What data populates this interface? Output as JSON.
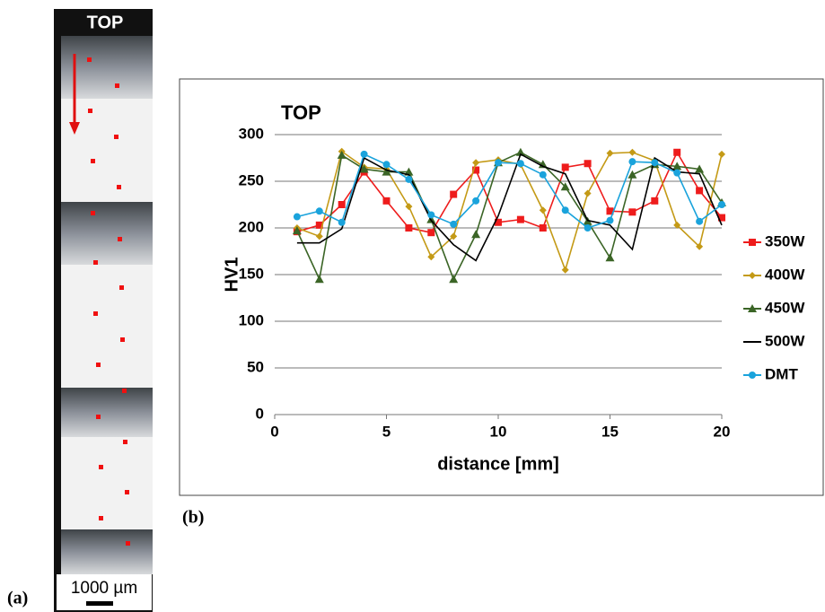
{
  "figure": {
    "panel_a": {
      "title": "TOP",
      "scale_bar": "1000 µm",
      "label": "(a)"
    },
    "panel_b_label": "(b)"
  },
  "chart_data": {
    "type": "line",
    "title": "TOP",
    "x_label": "distance [mm]",
    "y_label": "HV1",
    "x": [
      1,
      2,
      3,
      4,
      5,
      6,
      7,
      8,
      9,
      10,
      11,
      12,
      13,
      14,
      15,
      16,
      17,
      18,
      19,
      20
    ],
    "series": [
      {
        "name": "350W",
        "color": "#ee1c1c",
        "marker": "square",
        "values": [
          196,
          203,
          225,
          260,
          229,
          200,
          195,
          236,
          262,
          206,
          209,
          200,
          265,
          269,
          218,
          217,
          229,
          281,
          240,
          211
        ]
      },
      {
        "name": "400W",
        "color": "#c49a16",
        "marker": "diamond",
        "values": [
          200,
          191,
          282,
          265,
          263,
          223,
          169,
          191,
          270,
          273,
          268,
          219,
          155,
          237,
          280,
          281,
          272,
          203,
          180,
          279
        ]
      },
      {
        "name": "450W",
        "color": "#3b6526",
        "marker": "triangle",
        "values": [
          197,
          145,
          278,
          263,
          260,
          260,
          209,
          145,
          193,
          270,
          281,
          268,
          244,
          207,
          168,
          257,
          268,
          266,
          263,
          227
        ]
      },
      {
        "name": "500W",
        "color": "#000000",
        "marker": "none",
        "values": [
          184,
          184,
          199,
          275,
          262,
          257,
          208,
          182,
          165,
          213,
          279,
          266,
          258,
          208,
          203,
          177,
          275,
          260,
          258,
          203
        ]
      },
      {
        "name": "DMT",
        "color": "#1aa3dc",
        "marker": "circle",
        "values": [
          212,
          218,
          206,
          279,
          268,
          252,
          214,
          204,
          229,
          270,
          269,
          257,
          219,
          200,
          208,
          271,
          270,
          259,
          207,
          225
        ]
      }
    ],
    "xlim": [
      0,
      20
    ],
    "xticks": [
      0,
      5,
      10,
      15,
      20
    ],
    "ylim": [
      0,
      300
    ],
    "yticks": [
      0,
      50,
      100,
      150,
      200,
      250,
      300
    ],
    "grid": true,
    "legend": "right"
  }
}
